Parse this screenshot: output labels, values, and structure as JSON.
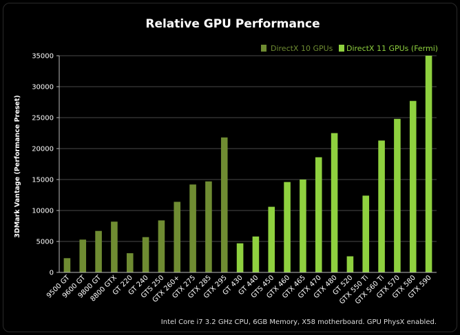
{
  "chart_data": {
    "type": "bar",
    "title": "Relative GPU Performance",
    "xlabel": "",
    "ylabel": "3DMark Vantage (Performance Preset)",
    "ylim": [
      0,
      35000
    ],
    "yticks": [
      0,
      5000,
      10000,
      15000,
      20000,
      25000,
      30000,
      35000
    ],
    "grid": true,
    "legend_position": "top-right",
    "categories": [
      "9500 GT",
      "9600 GT",
      "9800 GT",
      "8800 GTX",
      "GT 220",
      "GT 240",
      "GTS 250",
      "GTX 260+",
      "GTX 275",
      "GTX 285",
      "GTX 295",
      "GT 430",
      "GT 440",
      "GTS 450",
      "GTX 460",
      "GTX 465",
      "GTX 470",
      "GTX 480",
      "GT 520",
      "GTX 550 Ti",
      "GTX 560 Ti",
      "GTX 570",
      "GTX 580",
      "GTX 590"
    ],
    "series": [
      {
        "name": "DirectX 10 GPUs",
        "color": "#6f8c32",
        "values": [
          2300,
          5300,
          6700,
          8200,
          3100,
          5700,
          8400,
          11400,
          14200,
          14700,
          21800,
          null,
          null,
          null,
          null,
          null,
          null,
          null,
          null,
          null,
          null,
          null,
          null,
          null
        ]
      },
      {
        "name": "DirectX 11 GPUs (Fermi)",
        "color": "#8fd13f",
        "values": [
          null,
          null,
          null,
          null,
          null,
          null,
          null,
          null,
          null,
          null,
          null,
          4700,
          5800,
          10600,
          14600,
          15000,
          18600,
          22500,
          2600,
          12400,
          21300,
          24800,
          27700,
          35000
        ]
      }
    ],
    "footnote": "Intel Core i7 3.2 GHz CPU, 6GB Memory, X58 motherboard. GPU PhysX enabled."
  }
}
